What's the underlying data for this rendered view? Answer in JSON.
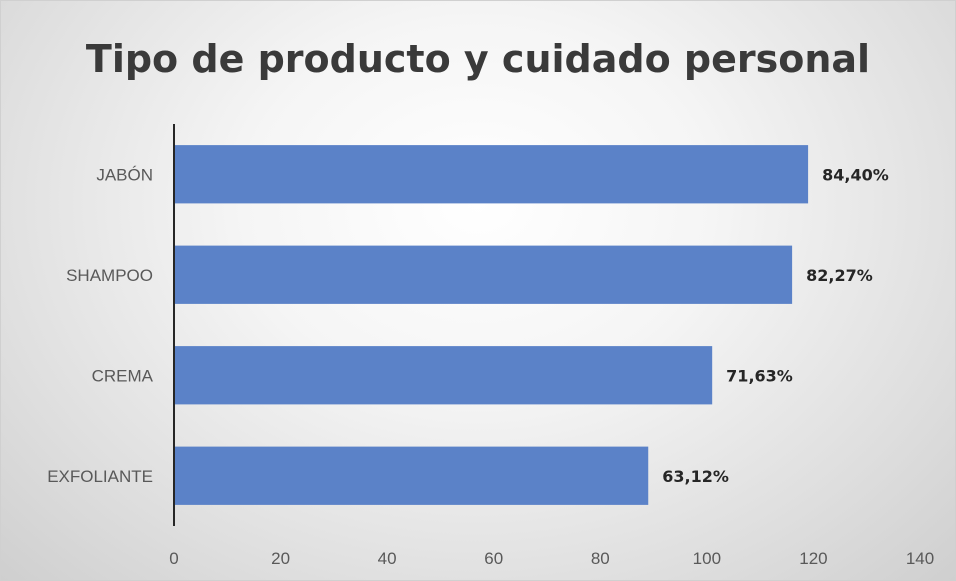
{
  "chart_data": {
    "type": "bar",
    "orientation": "horizontal",
    "title": "Tipo de producto y cuidado personal",
    "xlabel": "",
    "ylabel": "",
    "categories": [
      "JABÓN",
      "SHAMPOO",
      "CREMA",
      "EXFOLIANTE"
    ],
    "values": [
      119,
      116,
      101,
      89
    ],
    "data_labels": [
      "84,40%",
      "82,27%",
      "71,63%",
      "63,12%"
    ],
    "xlim": [
      0,
      140
    ],
    "x_ticks": [
      0,
      20,
      40,
      60,
      80,
      100,
      120,
      140
    ],
    "grid": false,
    "legend": "none",
    "bar_color": "#5b82c8",
    "axis_color": "#262626"
  }
}
